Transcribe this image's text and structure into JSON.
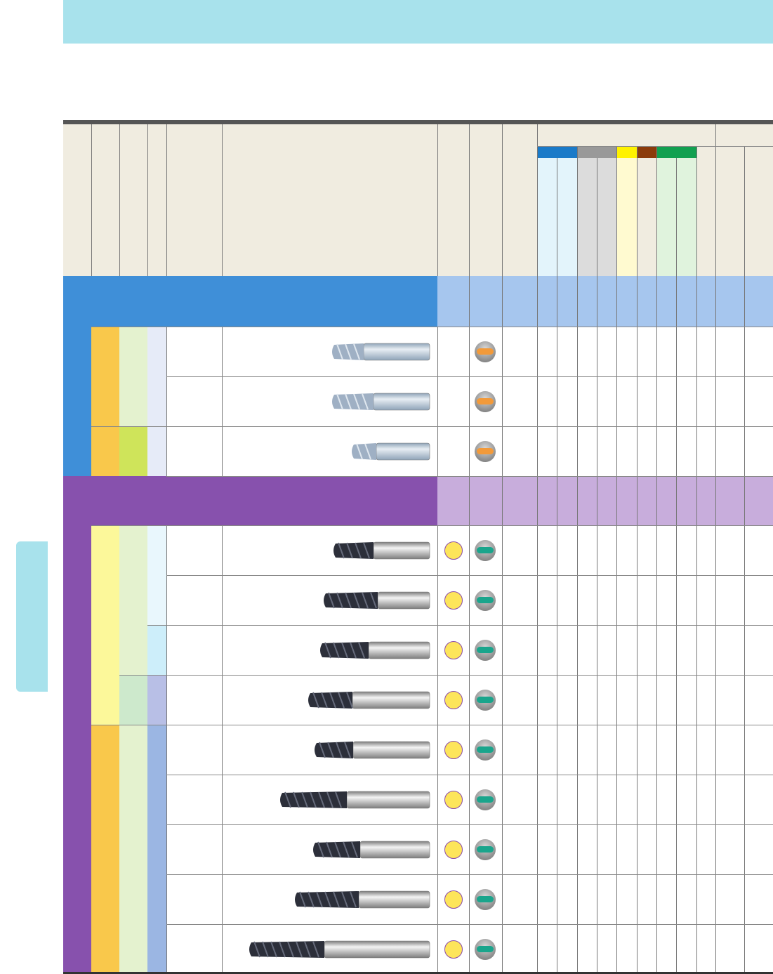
{
  "page": {
    "title": "",
    "side_tab_label": ""
  },
  "colors": {
    "header_band": "#a8e2ec",
    "table_header": "#f0ece0",
    "section_a": "#3f8fd8",
    "section_a_cells": "#a6c6ee",
    "section_b": "#8751ad",
    "section_b_cells": "#c8addc",
    "material_groups": [
      "#1a7ac8",
      "#999999",
      "#fff200",
      "#8b3b0a",
      "#12a050"
    ]
  },
  "table": {
    "sections": [
      {
        "name": "",
        "rows": [
          {
            "tool_icon": "end-mill-tool-icon",
            "badge": "orange-pill-icon"
          },
          {
            "tool_icon": "end-mill-tool-icon",
            "badge": "orange-pill-icon"
          },
          {
            "tool_icon": "end-mill-tool-icon",
            "badge": "orange-pill-icon"
          }
        ]
      },
      {
        "name": "",
        "rows": [
          {
            "tool_icon": "end-mill-tool-icon",
            "badge": "teal-pill-icon",
            "circle": true
          },
          {
            "tool_icon": "end-mill-tool-icon",
            "badge": "teal-pill-icon",
            "circle": true
          },
          {
            "tool_icon": "end-mill-tool-icon",
            "badge": "teal-pill-icon",
            "circle": true
          },
          {
            "tool_icon": "end-mill-tool-icon",
            "badge": "teal-pill-icon",
            "circle": true
          },
          {
            "tool_icon": "end-mill-tool-icon",
            "badge": "teal-pill-icon",
            "circle": true
          },
          {
            "tool_icon": "end-mill-tool-icon",
            "badge": "teal-pill-icon",
            "circle": true
          },
          {
            "tool_icon": "end-mill-tool-icon",
            "badge": "teal-pill-icon",
            "circle": true
          },
          {
            "tool_icon": "end-mill-tool-icon",
            "badge": "teal-pill-icon",
            "circle": true
          },
          {
            "tool_icon": "end-mill-tool-icon",
            "badge": "teal-pill-icon",
            "circle": true
          }
        ]
      }
    ]
  }
}
